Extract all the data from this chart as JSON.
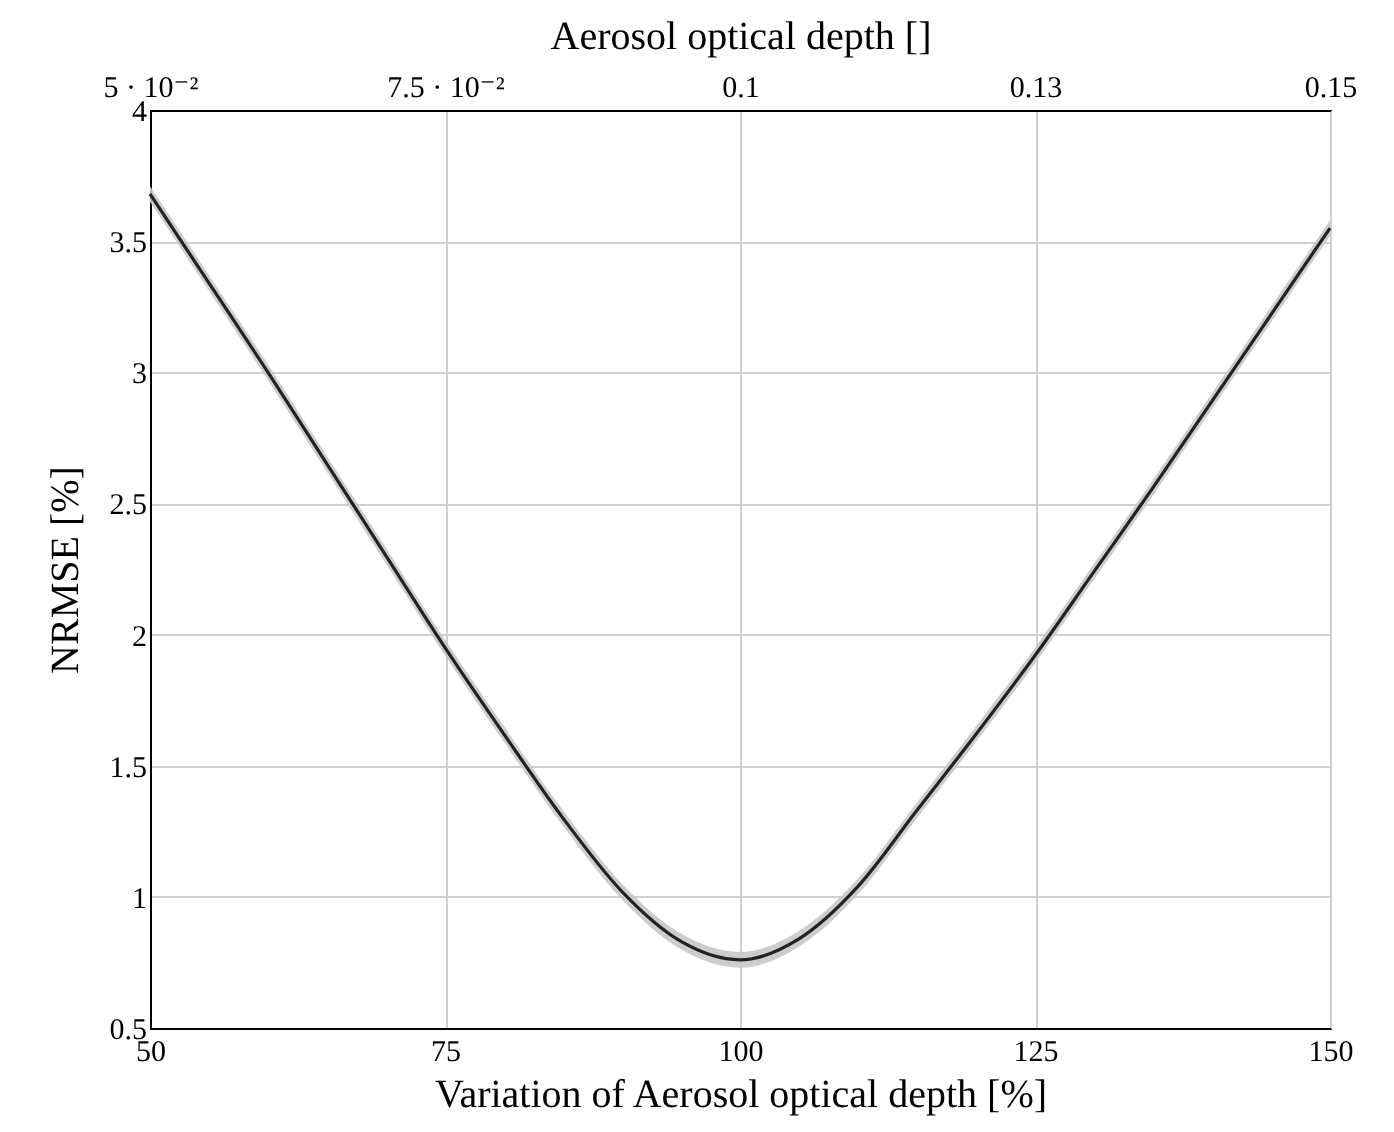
{
  "chart_data": {
    "type": "line",
    "xlabel": "Variation of Aerosol optical depth [%]",
    "ylabel": "NRMSE [%]",
    "x2label": "Aerosol optical depth []",
    "x": [
      50,
      55,
      60,
      65,
      70,
      75,
      80,
      85,
      90,
      95,
      100,
      105,
      110,
      115,
      120,
      125,
      130,
      135,
      140,
      145,
      150
    ],
    "series": [
      {
        "color": "#222222",
        "values": [
          3.68,
          3.34,
          3.0,
          2.65,
          2.3,
          1.95,
          1.62,
          1.3,
          1.02,
          0.83,
          0.76,
          0.84,
          1.04,
          1.33,
          1.62,
          1.92,
          2.24,
          2.56,
          2.89,
          3.22,
          3.55
        ],
        "lower": [
          3.65,
          3.31,
          2.97,
          2.62,
          2.27,
          1.92,
          1.59,
          1.27,
          0.99,
          0.8,
          0.73,
          0.81,
          1.01,
          1.3,
          1.59,
          1.89,
          2.21,
          2.53,
          2.86,
          3.19,
          3.52
        ],
        "upper": [
          3.71,
          3.37,
          3.03,
          2.68,
          2.33,
          1.98,
          1.65,
          1.33,
          1.05,
          0.86,
          0.79,
          0.87,
          1.07,
          1.36,
          1.65,
          1.95,
          2.27,
          2.59,
          2.92,
          3.25,
          3.58
        ]
      }
    ],
    "xlim": [
      50,
      150
    ],
    "xticks": [
      50,
      75,
      100,
      125,
      150
    ],
    "x2lim": [
      0.05,
      0.15
    ],
    "x2ticks": [
      {
        "value": 0.05,
        "label": "5 · 10⁻²"
      },
      {
        "value": 0.075,
        "label": "7.5 · 10⁻²"
      },
      {
        "value": 0.1,
        "label": "0.1"
      },
      {
        "value": 0.125,
        "label": "0.13"
      },
      {
        "value": 0.15,
        "label": "0.15"
      }
    ],
    "ylim": [
      0.5,
      4
    ],
    "yticks": [
      0.5,
      1,
      1.5,
      2,
      2.5,
      3,
      3.5,
      4
    ],
    "grid": true,
    "marker": "none",
    "line_style": "solid"
  }
}
